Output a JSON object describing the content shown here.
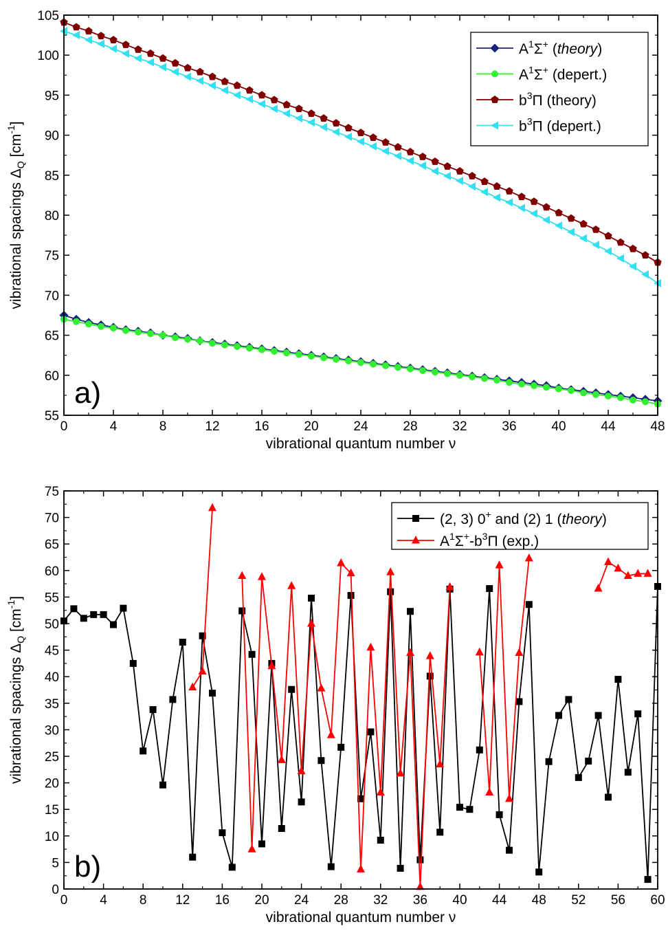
{
  "chart_data": [
    {
      "type": "line",
      "panel_label": "a)",
      "xlabel": "vibrational quantum number ν",
      "ylabel": "vibrational spacings ΔQ [cm-1]",
      "ylabel_parts": {
        "main": "vibrational spacings Δ",
        "sub": "Q",
        "unit_open": " [cm",
        "unit_sup": "-1",
        "unit_close": "]"
      },
      "xlim": [
        0,
        48
      ],
      "ylim": [
        55,
        105
      ],
      "xticks": [
        0,
        4,
        8,
        12,
        16,
        20,
        24,
        28,
        32,
        36,
        40,
        44,
        48
      ],
      "yticks": [
        55,
        60,
        65,
        70,
        75,
        80,
        85,
        90,
        95,
        100,
        105
      ],
      "legend_position": "top-right",
      "series": [
        {
          "name": "A1Σ+ (theory)",
          "legend_parts": [
            "A",
            "1",
            "Σ",
            "+",
            " (",
            "theory",
            ")"
          ],
          "color": "#1a237e",
          "marker": "diamond",
          "x": [
            0,
            1,
            2,
            3,
            4,
            5,
            6,
            7,
            8,
            9,
            10,
            11,
            12,
            13,
            14,
            15,
            16,
            17,
            18,
            19,
            20,
            21,
            22,
            23,
            24,
            25,
            26,
            27,
            28,
            29,
            30,
            31,
            32,
            33,
            34,
            35,
            36,
            37,
            38,
            39,
            40,
            41,
            42,
            43,
            44,
            45,
            46,
            47,
            48
          ],
          "y": [
            67.5,
            67.0,
            66.6,
            66.3,
            66.0,
            65.7,
            65.5,
            65.3,
            65.0,
            64.8,
            64.6,
            64.3,
            64.1,
            63.9,
            63.7,
            63.5,
            63.3,
            63.1,
            62.9,
            62.7,
            62.5,
            62.3,
            62.1,
            61.9,
            61.7,
            61.5,
            61.3,
            61.1,
            60.9,
            60.7,
            60.5,
            60.3,
            60.1,
            59.9,
            59.7,
            59.5,
            59.3,
            59.1,
            58.9,
            58.7,
            58.4,
            58.2,
            58.0,
            57.8,
            57.6,
            57.4,
            57.2,
            57.0,
            56.8
          ]
        },
        {
          "name": "A1Σ+ (depert.)",
          "legend_parts": [
            "A",
            "1",
            "Σ",
            "+",
            " (depert.)",
            "",
            ""
          ],
          "color": "#33ee33",
          "marker": "circle",
          "x": [
            0,
            1,
            2,
            3,
            4,
            5,
            6,
            7,
            8,
            9,
            10,
            11,
            12,
            13,
            14,
            15,
            16,
            17,
            18,
            19,
            20,
            21,
            22,
            23,
            24,
            25,
            26,
            27,
            28,
            29,
            30,
            31,
            32,
            33,
            34,
            35,
            36,
            37,
            38,
            39,
            40,
            41,
            42,
            43,
            44,
            45,
            46,
            47,
            48
          ],
          "y": [
            67.0,
            66.7,
            66.4,
            66.1,
            65.9,
            65.6,
            65.4,
            65.2,
            65.0,
            64.7,
            64.5,
            64.3,
            64.0,
            63.8,
            63.6,
            63.4,
            63.2,
            63.0,
            62.8,
            62.6,
            62.4,
            62.2,
            62.0,
            61.8,
            61.6,
            61.4,
            61.2,
            61.0,
            60.8,
            60.6,
            60.4,
            60.2,
            60.0,
            59.8,
            59.6,
            59.4,
            59.1,
            58.9,
            58.7,
            58.5,
            58.3,
            58.1,
            57.8,
            57.6,
            57.4,
            57.2,
            56.9,
            56.7,
            56.4
          ]
        },
        {
          "name": "b3Π (theory)",
          "legend_parts": [
            "b",
            "3",
            "Π",
            "",
            " (theory)",
            "",
            ""
          ],
          "color": "#800000",
          "marker": "pentagon",
          "x": [
            0,
            1,
            2,
            3,
            4,
            5,
            6,
            7,
            8,
            9,
            10,
            11,
            12,
            13,
            14,
            15,
            16,
            17,
            18,
            19,
            20,
            21,
            22,
            23,
            24,
            25,
            26,
            27,
            28,
            29,
            30,
            31,
            32,
            33,
            34,
            35,
            36,
            37,
            38,
            39,
            40,
            41,
            42,
            43,
            44,
            45,
            46,
            47,
            48
          ],
          "y": [
            104.1,
            103.5,
            103.0,
            102.4,
            101.9,
            101.3,
            100.7,
            100.2,
            99.6,
            99.0,
            98.4,
            97.9,
            97.3,
            96.7,
            96.2,
            95.6,
            95.0,
            94.4,
            93.8,
            93.3,
            92.7,
            92.1,
            91.5,
            90.9,
            90.3,
            89.7,
            89.1,
            88.5,
            87.9,
            87.3,
            86.7,
            86.1,
            85.5,
            84.9,
            84.2,
            83.6,
            83.0,
            82.3,
            81.7,
            81.0,
            80.3,
            79.6,
            78.9,
            78.2,
            77.4,
            76.6,
            75.8,
            75.0,
            74.1
          ]
        },
        {
          "name": "b3Π (depert.)",
          "legend_parts": [
            "b",
            "3",
            "Π",
            "",
            " (depert.)",
            "",
            ""
          ],
          "color": "#33e0f0",
          "marker": "triangle-left",
          "x": [
            0,
            1,
            2,
            3,
            4,
            5,
            6,
            7,
            8,
            9,
            10,
            11,
            12,
            13,
            14,
            15,
            16,
            17,
            18,
            19,
            20,
            21,
            22,
            23,
            24,
            25,
            26,
            27,
            28,
            29,
            30,
            31,
            32,
            33,
            34,
            35,
            36,
            37,
            38,
            39,
            40,
            41,
            42,
            43,
            44,
            45,
            46,
            47,
            48
          ],
          "y": [
            103.0,
            102.5,
            101.9,
            101.4,
            100.8,
            100.2,
            99.6,
            99.1,
            98.5,
            97.9,
            97.3,
            96.8,
            96.2,
            95.6,
            95.0,
            94.5,
            93.9,
            93.3,
            92.7,
            92.1,
            91.6,
            91.0,
            90.4,
            89.8,
            89.2,
            88.6,
            88.0,
            87.4,
            86.8,
            86.2,
            85.5,
            84.9,
            84.3,
            83.6,
            82.9,
            82.2,
            81.6,
            80.9,
            80.2,
            79.4,
            78.7,
            77.9,
            77.1,
            76.3,
            75.5,
            74.6,
            73.6,
            72.6,
            71.5
          ]
        }
      ]
    },
    {
      "type": "line",
      "panel_label": "b)",
      "xlabel": "vibrational quantum number ν",
      "ylabel": "vibrational spacings ΔQ [cm-1]",
      "ylabel_parts": {
        "main": "vibrational spacings Δ",
        "sub": "Q",
        "unit_open": " [cm",
        "unit_sup": "-1",
        "unit_close": "]"
      },
      "xlim": [
        0,
        60
      ],
      "ylim": [
        0,
        75
      ],
      "xticks": [
        0,
        4,
        8,
        12,
        16,
        20,
        24,
        28,
        32,
        36,
        40,
        44,
        48,
        52,
        56,
        60
      ],
      "yticks": [
        0,
        5,
        10,
        15,
        20,
        25,
        30,
        35,
        40,
        45,
        50,
        55,
        60,
        65,
        70,
        75
      ],
      "legend_position": "top-right",
      "series": [
        {
          "name": "(2, 3) 0+ and (2) 1 (theory)",
          "legend_parts": [
            "(2, 3) 0",
            "+",
            " and (2) 1 (",
            "theory",
            ")"
          ],
          "color": "#000000",
          "marker": "square",
          "x": [
            0,
            1,
            2,
            3,
            4,
            5,
            6,
            7,
            8,
            9,
            10,
            11,
            12,
            13,
            14,
            15,
            16,
            17,
            18,
            19,
            20,
            21,
            22,
            23,
            24,
            25,
            26,
            27,
            28,
            29,
            30,
            31,
            32,
            33,
            34,
            35,
            36,
            37,
            38,
            39,
            40,
            41,
            42,
            43,
            44,
            45,
            46,
            47,
            48,
            49,
            50,
            51,
            52,
            53,
            54,
            55,
            56,
            57,
            58,
            59,
            60
          ],
          "y": [
            50.5,
            52.8,
            51.0,
            51.7,
            51.7,
            49.8,
            52.9,
            42.5,
            26.0,
            33.8,
            19.6,
            35.7,
            46.5,
            6.0,
            47.7,
            36.9,
            10.6,
            4.1,
            52.4,
            44.2,
            8.5,
            42.5,
            11.4,
            37.6,
            16.4,
            54.8,
            24.2,
            4.2,
            26.7,
            55.3,
            17.0,
            29.6,
            9.2,
            56.0,
            3.9,
            52.3,
            5.5,
            40.1,
            10.7,
            56.5,
            15.4,
            15.0,
            26.2,
            56.6,
            14.0,
            7.3,
            35.3,
            53.6,
            3.2,
            24.0,
            32.7,
            35.7,
            21.0,
            24.1,
            32.7,
            17.3,
            39.5,
            22.0,
            33.0,
            1.8,
            57.0
          ]
        },
        {
          "name": "A1Σ+-b3Π (exp.)",
          "legend_parts": [
            "A",
            "1",
            "Σ",
            "+",
            "-b",
            "3",
            "Π (exp.)"
          ],
          "color": "#ff0000",
          "marker": "triangle-up",
          "segments": [
            {
              "x": [
                13,
                14,
                15
              ],
              "y": [
                38.0,
                41.0,
                71.8
              ]
            },
            {
              "x": [
                18,
                19,
                20,
                21,
                22,
                23,
                24,
                25,
                26,
                27,
                28,
                29,
                30,
                31,
                32,
                33,
                34,
                35,
                36,
                37,
                38,
                39
              ],
              "y": [
                59.0,
                7.5,
                58.8,
                42.0,
                24.3,
                57.1,
                22.2,
                50.0,
                37.8,
                29.0,
                61.4,
                59.5,
                3.7,
                45.5,
                18.2,
                59.7,
                21.8,
                44.5,
                0.4,
                43.9,
                23.5,
                56.9
              ]
            },
            {
              "x": [
                42,
                43,
                44,
                45,
                46,
                47
              ],
              "y": [
                44.6,
                18.2,
                61.0,
                17.0,
                44.5,
                62.3
              ]
            },
            {
              "x": [
                54,
                55,
                56,
                57,
                58,
                59
              ],
              "y": [
                56.6,
                61.6,
                60.4,
                59.0,
                59.4,
                59.4
              ]
            }
          ]
        }
      ]
    }
  ]
}
